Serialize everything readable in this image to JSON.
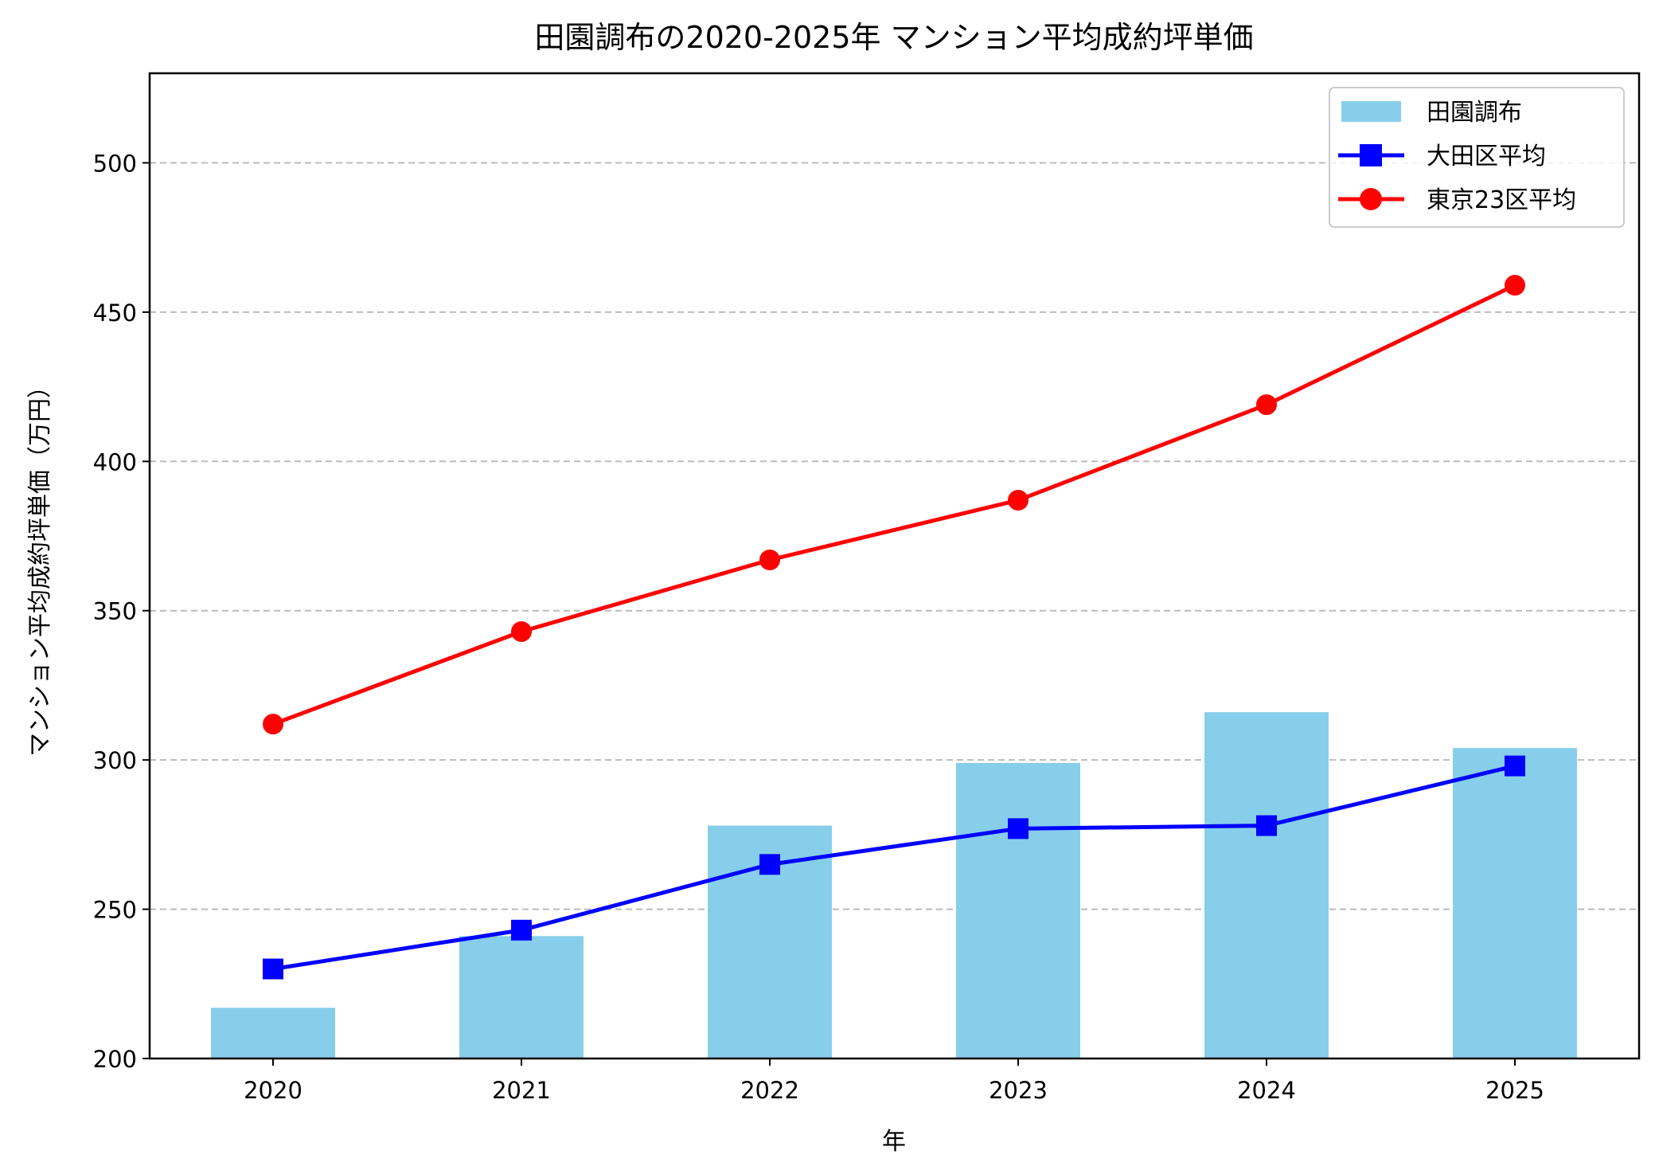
{
  "chart_data": {
    "type": "bar+line",
    "title": "田園調布の2020-2025年 マンション平均成約坪単価",
    "xlabel": "年",
    "ylabel": "マンション平均成約坪単価（万円）",
    "categories": [
      "2020",
      "2021",
      "2022",
      "2023",
      "2024",
      "2025"
    ],
    "ylim": [
      200,
      530
    ],
    "yticks": [
      200,
      250,
      300,
      350,
      400,
      450,
      500
    ],
    "grid": "y dashed",
    "legend_position": "top-right",
    "series": [
      {
        "name": "田園調布",
        "kind": "bar",
        "color": "#87CEEB",
        "values": [
          217,
          241,
          278,
          299,
          316,
          304
        ]
      },
      {
        "name": "大田区平均",
        "kind": "line",
        "marker": "square",
        "color": "#0000FF",
        "values": [
          230,
          243,
          265,
          277,
          278,
          298
        ]
      },
      {
        "name": "東京23区平均",
        "kind": "line",
        "marker": "circle",
        "color": "#FF0000",
        "values": [
          312,
          343,
          367,
          387,
          419,
          459
        ]
      }
    ]
  }
}
